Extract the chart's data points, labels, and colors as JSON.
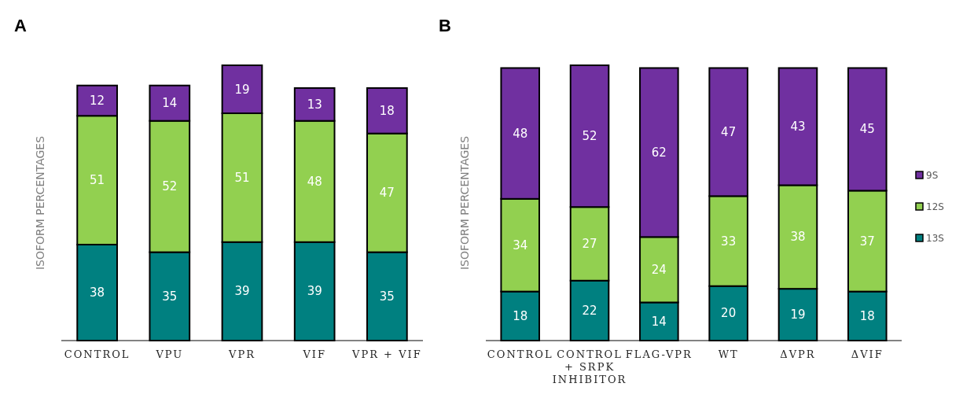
{
  "chart_data": [
    {
      "type": "bar",
      "title": "A",
      "ylabel": "ISOFORM PERCENTAGES",
      "stacked": true,
      "data_labels": true,
      "tick_labels": "x",
      "ylim": [
        0,
        109
      ],
      "categories": [
        "CONTROL",
        "VPU",
        "VPR",
        "VIF",
        "VPR + VIF"
      ],
      "series": [
        {
          "color": "#008080",
          "values": [
            38,
            35,
            39,
            39,
            35
          ]
        },
        {
          "color": "#92d050",
          "values": [
            51,
            52,
            51,
            48,
            47
          ]
        },
        {
          "color": "#7030a0",
          "values": [
            12,
            14,
            19,
            13,
            18
          ]
        }
      ]
    },
    {
      "type": "bar",
      "title": "B",
      "ylabel": "ISOFORM PERCENTAGES",
      "stacked": true,
      "data_labels": true,
      "tick_labels": "x",
      "ylim": [
        0,
        101
      ],
      "legend": "right",
      "categories": [
        "CONTROL",
        "CONTROL + SRPK INHIBITOR",
        "FLAG-VPR",
        "WT",
        "ΔVPR",
        "ΔVIF"
      ],
      "series": [
        {
          "name": "13S",
          "color": "#008080",
          "values": [
            18,
            22,
            14,
            20,
            19,
            18
          ]
        },
        {
          "name": "12S",
          "color": "#92d050",
          "values": [
            34,
            27,
            24,
            33,
            38,
            37
          ]
        },
        {
          "name": "9S",
          "color": "#7030a0",
          "values": [
            48,
            52,
            62,
            47,
            43,
            45
          ]
        }
      ]
    }
  ]
}
